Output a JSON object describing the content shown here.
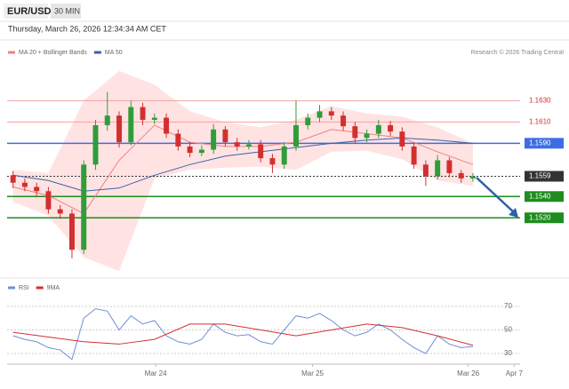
{
  "header": {
    "symbol": "EUR/USD",
    "interval": "30 MIN",
    "datetime": "Thursday, March 26, 2026 12:34:34 AM CET",
    "credit": "Research © 2026 Trading Central"
  },
  "chart_data": [
    {
      "type": "candlestick",
      "up_color": "#2e9d3a",
      "down_color": "#d32f2f",
      "xlim": [
        -0.5,
        43
      ],
      "ylim": [
        1.1466,
        1.1662
      ],
      "candles": {
        "open": [
          1.156,
          1.1553,
          1.1549,
          1.1545,
          1.1528,
          1.1524,
          1.149,
          1.157,
          1.1607,
          1.1616,
          1.1591,
          1.1624,
          1.1612,
          1.1614,
          1.1599,
          1.1587,
          1.1581,
          1.1584,
          1.1603,
          1.1591,
          1.1587,
          1.1589,
          1.1576,
          1.157,
          1.1587,
          1.1607,
          1.1614,
          1.162,
          1.1616,
          1.1606,
          1.1595,
          1.1599,
          1.1607,
          1.1601,
          1.1587,
          1.157,
          1.1559,
          1.1574,
          1.1562,
          1.1557
        ],
        "high": [
          1.1564,
          1.1557,
          1.1553,
          1.1549,
          1.1532,
          1.1528,
          1.1574,
          1.1612,
          1.1638,
          1.162,
          1.163,
          1.1628,
          1.1618,
          1.1618,
          1.1603,
          1.1591,
          1.1588,
          1.1608,
          1.1606,
          1.1595,
          1.1593,
          1.1593,
          1.158,
          1.1591,
          1.163,
          1.1618,
          1.1626,
          1.1624,
          1.162,
          1.161,
          1.1603,
          1.1612,
          1.1611,
          1.1605,
          1.1591,
          1.1574,
          1.1579,
          1.1577,
          1.1565,
          1.1562
        ],
        "low": [
          1.1548,
          1.1545,
          1.154,
          1.1524,
          1.1519,
          1.1482,
          1.1486,
          1.1565,
          1.1602,
          1.1586,
          1.1588,
          1.1607,
          1.1608,
          1.1595,
          1.1583,
          1.1577,
          1.1578,
          1.158,
          1.1587,
          1.1583,
          1.1584,
          1.1572,
          1.1562,
          1.1566,
          1.1583,
          1.1603,
          1.161,
          1.1612,
          1.1602,
          1.159,
          1.1591,
          1.1595,
          1.1597,
          1.1583,
          1.1566,
          1.155,
          1.1556,
          1.1558,
          1.1553,
          1.1554
        ],
        "close": [
          1.1553,
          1.1549,
          1.1545,
          1.1528,
          1.1524,
          1.149,
          1.157,
          1.1607,
          1.1616,
          1.1591,
          1.1624,
          1.1612,
          1.1614,
          1.1599,
          1.1587,
          1.1581,
          1.1584,
          1.1603,
          1.1591,
          1.1587,
          1.1589,
          1.1576,
          1.157,
          1.1587,
          1.1607,
          1.1614,
          1.162,
          1.1616,
          1.1606,
          1.1595,
          1.1599,
          1.1607,
          1.1601,
          1.1587,
          1.157,
          1.1559,
          1.1574,
          1.1562,
          1.1557,
          1.1559
        ]
      },
      "band": {
        "color": "#ffdada",
        "x": [
          0,
          3,
          6,
          9,
          12,
          15,
          18,
          21,
          24,
          27,
          30,
          33,
          36,
          39
        ],
        "upper": [
          1.1565,
          1.1562,
          1.163,
          1.1658,
          1.1645,
          1.162,
          1.161,
          1.1605,
          1.1612,
          1.1625,
          1.1618,
          1.1615,
          1.1605,
          1.159
        ],
        "lower": [
          1.1535,
          1.1522,
          1.1483,
          1.147,
          1.1557,
          1.1565,
          1.1567,
          1.1568,
          1.1565,
          1.1582,
          1.1583,
          1.1575,
          1.1555,
          1.155
        ]
      },
      "series": [
        {
          "name": "MA 20 + Bollinger Bands",
          "color": "#f08080",
          "x": [
            0,
            3,
            6,
            9,
            12,
            15,
            18,
            21,
            24,
            27,
            30,
            33,
            36,
            39
          ],
          "values": [
            1.1549,
            1.1541,
            1.1524,
            1.1574,
            1.1607,
            1.1591,
            1.1587,
            1.1587,
            1.1591,
            1.1603,
            1.1599,
            1.1595,
            1.1582,
            1.157
          ]
        },
        {
          "name": "MA 50",
          "color": "#3f5fa8",
          "x": [
            0,
            3,
            6,
            9,
            12,
            15,
            18,
            21,
            24,
            27,
            30,
            33,
            36,
            39
          ],
          "values": [
            1.156,
            1.1555,
            1.1545,
            1.1548,
            1.156,
            1.157,
            1.1578,
            1.1582,
            1.1586,
            1.159,
            1.1593,
            1.1595,
            1.1593,
            1.159
          ]
        }
      ],
      "levels": [
        {
          "value": 1.163,
          "label": "1.1630",
          "color": "#f4a0a0",
          "boxed": false
        },
        {
          "value": 1.161,
          "label": "1.1610",
          "color": "#f4a0a0",
          "boxed": false
        },
        {
          "value": 1.159,
          "label": "1.1590",
          "color": "#3d6de0",
          "boxed": true
        },
        {
          "value": 1.1559,
          "label": "1.1559",
          "color": "#333333",
          "boxed": true
        },
        {
          "value": 1.154,
          "label": "1.1540",
          "color": "#1e8c1e",
          "boxed": true
        },
        {
          "value": 1.152,
          "label": "1.1520",
          "color": "#1e8c1e",
          "boxed": true
        }
      ]
    },
    {
      "type": "line",
      "xlim": [
        -0.5,
        43
      ],
      "ylim": [
        21,
        77.5
      ],
      "yticks": [
        30,
        50,
        70
      ],
      "grid": true,
      "xticks": [
        {
          "value": 12.1,
          "label": "Mar 24"
        },
        {
          "value": 25.4,
          "label": "Mar 25"
        },
        {
          "value": 38.6,
          "label": "Mar 26"
        },
        {
          "value": 42.5,
          "label": "Apr 7"
        }
      ],
      "series": [
        {
          "name": "RSI",
          "color": "#6f8fd8",
          "x": [
            0,
            1,
            2,
            3,
            4,
            5,
            6,
            7,
            8,
            9,
            10,
            11,
            12,
            13,
            14,
            15,
            16,
            17,
            18,
            19,
            20,
            21,
            22,
            23,
            24,
            25,
            26,
            27,
            28,
            29,
            30,
            31,
            32,
            33,
            34,
            35,
            36,
            37,
            38,
            39
          ],
          "values": [
            45,
            42,
            40,
            35,
            33,
            25,
            60,
            68,
            66,
            50,
            62,
            55,
            58,
            45,
            40,
            38,
            42,
            55,
            48,
            45,
            46,
            40,
            38,
            50,
            62,
            60,
            64,
            58,
            50,
            45,
            48,
            55,
            50,
            42,
            35,
            30,
            45,
            38,
            35,
            36
          ]
        },
        {
          "name": "9MA",
          "color": "#d32f2f",
          "x": [
            0,
            3,
            6,
            9,
            12,
            15,
            18,
            21,
            24,
            27,
            30,
            33,
            36,
            39
          ],
          "values": [
            48,
            44,
            40,
            38,
            42,
            55,
            55,
            50,
            45,
            50,
            55,
            52,
            45,
            37
          ]
        }
      ]
    }
  ]
}
